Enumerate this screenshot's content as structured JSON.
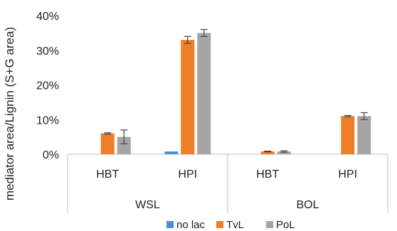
{
  "chart_data": {
    "type": "bar",
    "ylabel": "mediator area/Lignin (S+G area)",
    "ylim": [
      0,
      40
    ],
    "yticks": [
      "0%",
      "10%",
      "20%",
      "30%",
      "40%"
    ],
    "ytick_values": [
      0,
      10,
      20,
      30,
      40
    ],
    "groups": [
      {
        "name": "WSL",
        "categories": [
          "HBT",
          "HPI"
        ]
      },
      {
        "name": "BOL",
        "categories": [
          "HBT",
          "HPI"
        ]
      }
    ],
    "categories": [
      "WSL HBT",
      "WSL HPI",
      "BOL HBT",
      "BOL HPI"
    ],
    "series": [
      {
        "name": "no lac",
        "color": "#4a90d9",
        "values": [
          0,
          0.8,
          0,
          0
        ],
        "errors": [
          0,
          0,
          0,
          0
        ]
      },
      {
        "name": "TvL",
        "color": "#f07e26",
        "values": [
          6,
          33,
          0.8,
          11
        ],
        "errors": [
          0.2,
          1,
          0.1,
          0.2
        ]
      },
      {
        "name": "PoL",
        "color": "#a5a5a5",
        "values": [
          5,
          35,
          0.8,
          11
        ],
        "errors": [
          2,
          1,
          0.2,
          1
        ]
      }
    ],
    "legend_position": "bottom",
    "grid": false
  }
}
